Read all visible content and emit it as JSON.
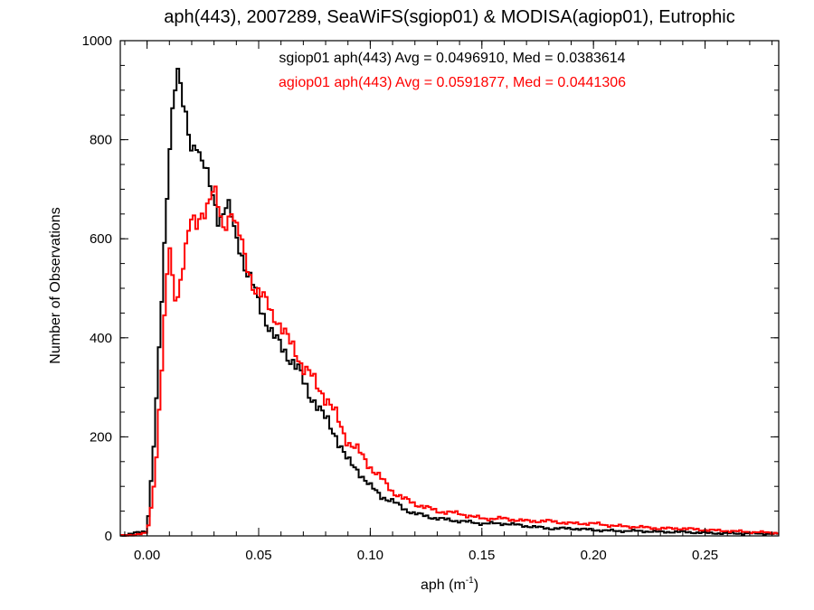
{
  "chart_data": {
    "type": "line",
    "title": "aph(443), 2007289, SeaWiFS(sgiop01) & MODISA(agiop01), Eutrophic",
    "xlabel": "aph (m",
    "xlabel_sup": "-1",
    "xlabel_end": ")",
    "ylabel": "Number of Observations",
    "xlim": [
      -0.012,
      0.283
    ],
    "ylim": [
      0,
      1000
    ],
    "x_ticks": [
      0.0,
      0.05,
      0.1,
      0.15,
      0.2,
      0.25
    ],
    "x_tick_labels": [
      "0.00",
      "0.05",
      "0.10",
      "0.15",
      "0.20",
      "0.25"
    ],
    "y_ticks": [
      0,
      200,
      400,
      600,
      800,
      1000
    ],
    "y_tick_labels": [
      "0",
      "200",
      "400",
      "600",
      "800",
      "1000"
    ],
    "grid": false,
    "legend": "top-center",
    "series": [
      {
        "name": "sgiop01 aph(443) Avg = 0.0496910, Med = 0.0383614",
        "color": "#000000",
        "x": [
          -0.012,
          0.0,
          0.002,
          0.004,
          0.006,
          0.008,
          0.01,
          0.012,
          0.014,
          0.016,
          0.018,
          0.02,
          0.022,
          0.024,
          0.026,
          0.028,
          0.03,
          0.032,
          0.034,
          0.036,
          0.038,
          0.04,
          0.042,
          0.044,
          0.046,
          0.048,
          0.05,
          0.052,
          0.054,
          0.056,
          0.058,
          0.06,
          0.062,
          0.064,
          0.066,
          0.068,
          0.07,
          0.072,
          0.074,
          0.076,
          0.078,
          0.08,
          0.085,
          0.09,
          0.095,
          0.1,
          0.105,
          0.11,
          0.115,
          0.12,
          0.13,
          0.14,
          0.15,
          0.16,
          0.17,
          0.18,
          0.19,
          0.2,
          0.21,
          0.22,
          0.23,
          0.24,
          0.25,
          0.26,
          0.27,
          0.283
        ],
        "y": [
          0,
          10,
          120,
          250,
          420,
          600,
          780,
          900,
          940,
          870,
          830,
          780,
          800,
          760,
          740,
          710,
          680,
          640,
          650,
          670,
          640,
          600,
          580,
          540,
          520,
          500,
          470,
          450,
          430,
          410,
          395,
          380,
          370,
          360,
          350,
          335,
          310,
          290,
          280,
          270,
          250,
          235,
          200,
          150,
          130,
          100,
          80,
          70,
          55,
          45,
          35,
          30,
          25,
          25,
          20,
          15,
          15,
          12,
          10,
          10,
          8,
          8,
          6,
          5,
          5,
          4
        ]
      },
      {
        "name": "agiop01 aph(443) Avg = 0.0591877, Med = 0.0441306",
        "color": "#ff0000",
        "x": [
          -0.012,
          0.0,
          0.002,
          0.004,
          0.006,
          0.008,
          0.01,
          0.012,
          0.014,
          0.016,
          0.018,
          0.02,
          0.022,
          0.024,
          0.026,
          0.028,
          0.03,
          0.032,
          0.034,
          0.036,
          0.038,
          0.04,
          0.042,
          0.044,
          0.046,
          0.048,
          0.05,
          0.052,
          0.054,
          0.056,
          0.058,
          0.06,
          0.062,
          0.064,
          0.066,
          0.068,
          0.07,
          0.072,
          0.074,
          0.076,
          0.078,
          0.08,
          0.085,
          0.09,
          0.095,
          0.1,
          0.105,
          0.11,
          0.115,
          0.12,
          0.13,
          0.14,
          0.15,
          0.16,
          0.17,
          0.18,
          0.19,
          0.2,
          0.21,
          0.22,
          0.23,
          0.24,
          0.25,
          0.26,
          0.27,
          0.283
        ],
        "y": [
          0,
          5,
          60,
          150,
          300,
          450,
          590,
          480,
          490,
          550,
          600,
          640,
          620,
          650,
          660,
          680,
          700,
          660,
          620,
          640,
          660,
          620,
          600,
          560,
          530,
          500,
          490,
          480,
          470,
          450,
          440,
          420,
          405,
          390,
          380,
          360,
          340,
          330,
          320,
          305,
          295,
          280,
          240,
          190,
          170,
          140,
          115,
          90,
          75,
          65,
          50,
          45,
          35,
          35,
          30,
          30,
          25,
          25,
          20,
          18,
          15,
          15,
          12,
          10,
          8,
          6
        ]
      }
    ]
  }
}
